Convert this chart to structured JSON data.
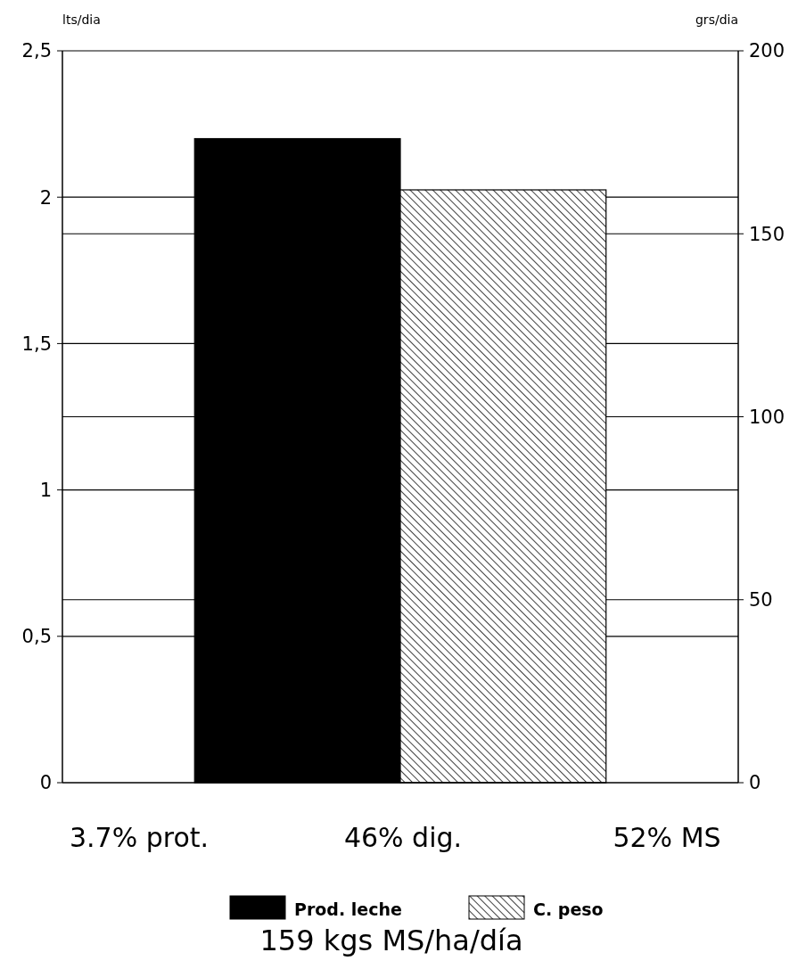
{
  "chart_data": {
    "type": "bar",
    "title": "159 kgs MS/ha/día",
    "ylabel": "lts/dia",
    "y2label": "grs/dia",
    "categories": [
      null
    ],
    "series": [
      {
        "name": "Prod. leche",
        "color": "#000000",
        "values": [
          2.2
        ]
      },
      {
        "name": "C. peso",
        "color": "#000000",
        "values": [
          162
        ],
        "axis": "y2"
      }
    ],
    "ylim": [
      0,
      2.5
    ],
    "yticks": [
      0,
      {
        "value": 0.5,
        "label": "0,5"
      },
      1,
      {
        "value": 1.5,
        "label": "1,5"
      },
      2,
      {
        "value": 2.5,
        "label": "2,5"
      }
    ],
    "y2lim": [
      0,
      200
    ],
    "y2ticks": [
      0,
      50,
      100,
      150,
      200
    ],
    "grid": true,
    "legend": "bottom",
    "annotations": [
      "3.7% prot.",
      "46% dig.",
      "52% MS"
    ]
  }
}
